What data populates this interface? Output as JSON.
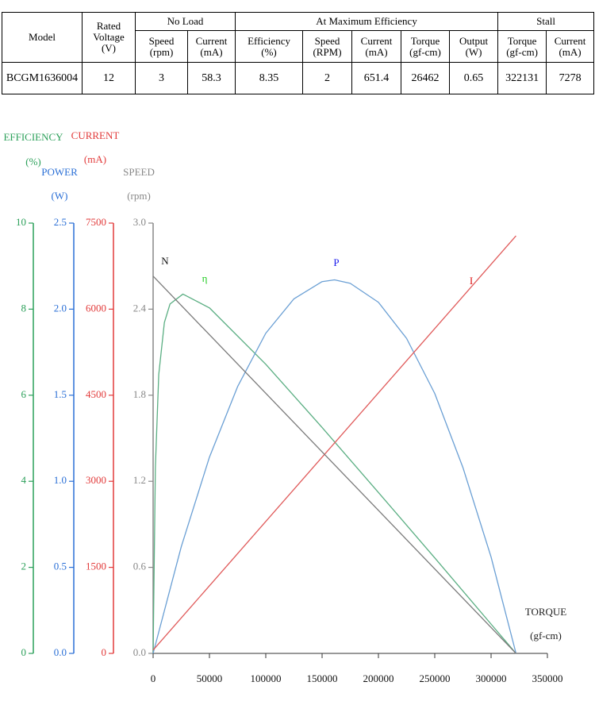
{
  "table": {
    "header_top": [
      [
        "Model"
      ],
      [
        "Rated",
        "Voltage",
        "(V)"
      ],
      [
        "No Load"
      ],
      [
        "At Maximum Efficiency"
      ],
      [
        "Stall"
      ]
    ],
    "header_sub": [
      [
        "Speed",
        "(rpm)"
      ],
      [
        "Current",
        "(mA)"
      ],
      [
        "Efficiency",
        "(%)"
      ],
      [
        "Speed",
        "(RPM)"
      ],
      [
        "Current",
        "(mA)"
      ],
      [
        "Torque",
        "(gf-cm)"
      ],
      [
        "Output",
        "(W)"
      ],
      [
        "Torque",
        "(gf-cm)"
      ],
      [
        "Current",
        "(mA)"
      ]
    ],
    "rows": [
      [
        "BCGM1636004",
        "12",
        "3",
        "58.3",
        "8.35",
        "2",
        "651.4",
        "26462",
        "0.65",
        "322131",
        "7278"
      ]
    ]
  },
  "chart_data": {
    "type": "line",
    "x_title": [
      "TORQUE",
      "(gf-cm)"
    ],
    "xlim": [
      0,
      350000
    ],
    "xticks": [
      0,
      50000,
      100000,
      150000,
      200000,
      250000,
      300000,
      350000
    ],
    "y_axes": [
      {
        "title": [
          "EFFICIENCY",
          "(%)"
        ],
        "color": "#2ca05a",
        "ylim": [
          0,
          10
        ],
        "yticks": [
          0,
          2,
          4,
          6,
          8,
          10
        ],
        "series": [
          {
            "name": "η",
            "color": "#5aae82",
            "label_color": "#22cc22",
            "x": [
              0,
              2000,
              5000,
              10000,
              15000,
              26462,
              50000,
              100000,
              150000,
              200000,
              250000,
              300000,
              322131
            ],
            "values": [
              0,
              4.32,
              6.48,
              7.69,
              8.12,
              8.35,
              8.03,
              6.72,
              5.25,
              3.74,
              2.22,
              0.68,
              0
            ]
          }
        ]
      },
      {
        "title": [
          "POWER",
          "(W)"
        ],
        "color": "#2a6fd6",
        "ylim": [
          0,
          2.5
        ],
        "yticks": [
          {
            "value": 0,
            "label": "0.0"
          },
          0.5,
          {
            "value": 1,
            "label": "1.0"
          },
          1.5,
          {
            "value": 2,
            "label": "2.0"
          },
          2.5
        ],
        "series": [
          {
            "name": "P",
            "color": "#6a9fd4",
            "label_color": "#1a1aee",
            "x": [
              0,
              25000,
              50000,
              75000,
              100000,
              125000,
              150000,
              161066,
              175000,
              200000,
              225000,
              250000,
              275000,
              300000,
              322131
            ],
            "values": [
              0,
              0.62,
              1.14,
              1.55,
              1.86,
              2.06,
              2.16,
              2.17,
              2.15,
              2.04,
              1.83,
              1.51,
              1.08,
              0.56,
              0
            ]
          }
        ]
      },
      {
        "title": [
          "CURRENT",
          "(mA)"
        ],
        "color": "#e23b3b",
        "ylim": [
          0,
          7500
        ],
        "yticks": [
          0,
          1500,
          3000,
          4500,
          6000,
          7500
        ],
        "series": [
          {
            "name": "I",
            "color": "#e05a5a",
            "label_color": "#dd1111",
            "x": [
              0,
              322131
            ],
            "values": [
              58.3,
              7278
            ]
          }
        ]
      },
      {
        "title": [
          "SPEED",
          "(rpm)"
        ],
        "color": "#888888",
        "ylim": [
          0,
          3
        ],
        "yticks": [
          {
            "value": 0,
            "label": "0.0"
          },
          0.6,
          1.2,
          1.8,
          2.4,
          {
            "value": 3,
            "label": "3.0"
          }
        ],
        "series": [
          {
            "name": "N",
            "color": "#7a7a7a",
            "label_color": "#111111",
            "x": [
              0,
              322131
            ],
            "values": [
              2.63,
              0
            ]
          }
        ]
      }
    ]
  }
}
